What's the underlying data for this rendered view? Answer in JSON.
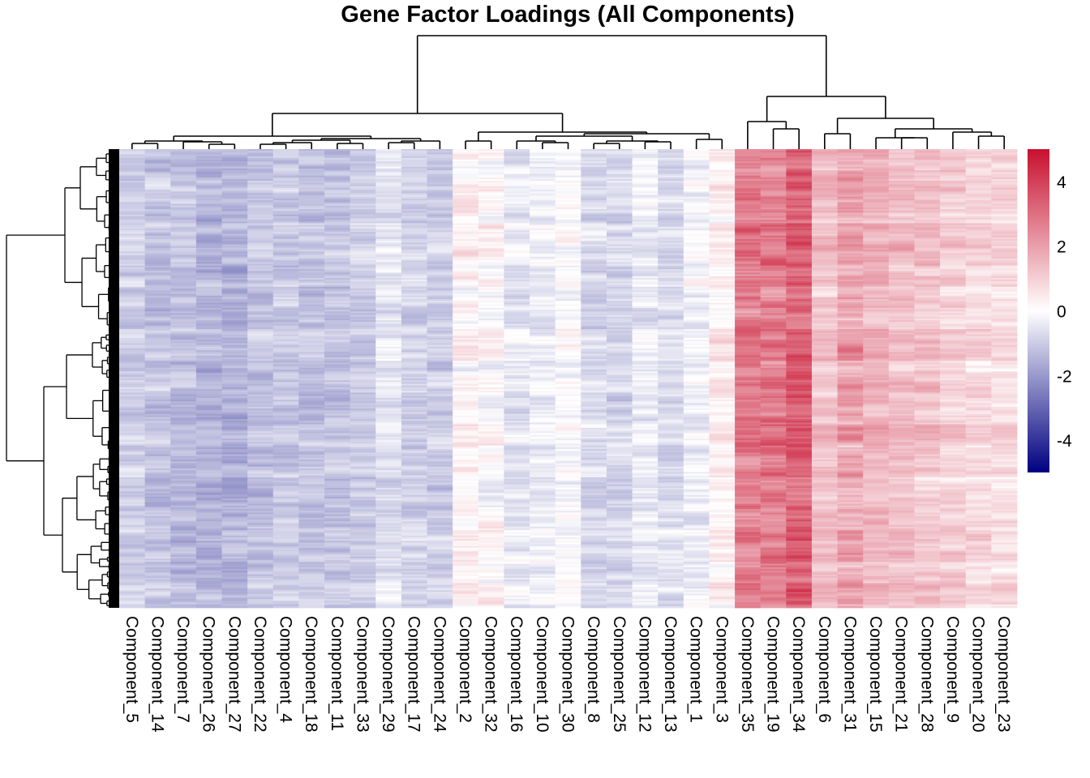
{
  "chart_data": {
    "type": "heatmap",
    "title": "Gene Factor Loadings (All Components)",
    "xlabel": "",
    "ylabel": "",
    "columns": [
      "Component_5",
      "Component_14",
      "Component_7",
      "Component_26",
      "Component_27",
      "Component_22",
      "Component_4",
      "Component_18",
      "Component_11",
      "Component_33",
      "Component_29",
      "Component_17",
      "Component_24",
      "Component_2",
      "Component_32",
      "Component_16",
      "Component_10",
      "Component_30",
      "Component_8",
      "Component_25",
      "Component_12",
      "Component_13",
      "Component_1",
      "Component_3",
      "Component_35",
      "Component_19",
      "Component_34",
      "Component_6",
      "Component_31",
      "Component_15",
      "Component_21",
      "Component_28",
      "Component_9",
      "Component_20",
      "Component_23"
    ],
    "column_mean_loading": [
      -1.0,
      -1.2,
      -1.3,
      -1.5,
      -1.5,
      -1.2,
      -1.1,
      -1.2,
      -1.2,
      -1.1,
      -0.6,
      -0.9,
      -1.0,
      0.2,
      0.1,
      -0.5,
      -0.3,
      -0.1,
      -0.8,
      -0.8,
      -0.4,
      -0.7,
      -0.3,
      0.3,
      2.7,
      2.8,
      3.3,
      1.3,
      1.8,
      1.5,
      1.3,
      1.2,
      1.0,
      0.8,
      0.7
    ],
    "row_count_description": "genes (rows, unlabeled, hierarchically clustered)",
    "color_scale": {
      "min": -5,
      "max": 5,
      "low_color": "#000080",
      "mid_color": "#ffffff",
      "high_color": "#c8102e",
      "ticks": [
        4,
        2,
        0,
        -2,
        -4
      ],
      "tick_labels": [
        "4",
        "2",
        "0",
        "-2",
        "-4"
      ]
    },
    "column_dendrogram": {
      "merges": [
        [
          0,
          1
        ],
        [
          2,
          3
        ],
        [
          4,
          5
        ],
        [
          6,
          7
        ],
        [
          8,
          9
        ],
        [
          10,
          11
        ],
        [
          12,
          13
        ],
        [
          14,
          15
        ],
        [
          16,
          17
        ],
        [
          18,
          19
        ],
        [
          20,
          21
        ],
        [
          22,
          23
        ],
        [
          24,
          25
        ],
        [
          26,
          27
        ],
        [
          28,
          29
        ],
        [
          30,
          31
        ],
        [
          32,
          33
        ],
        [
          34,
          35
        ],
        [
          36,
          37
        ],
        [
          38,
          39
        ],
        [
          40,
          41
        ],
        [
          42,
          43
        ],
        [
          44,
          45
        ],
        [
          46,
          47
        ],
        [
          48,
          49
        ],
        [
          50,
          51
        ],
        [
          52,
          53
        ],
        [
          54,
          55
        ],
        [
          56,
          57
        ],
        [
          58,
          59
        ],
        [
          60,
          61
        ],
        [
          62,
          63
        ],
        [
          64,
          65
        ],
        [
          66,
          67
        ]
      ]
    },
    "row_dendrogram": true,
    "legend_position": "right"
  }
}
